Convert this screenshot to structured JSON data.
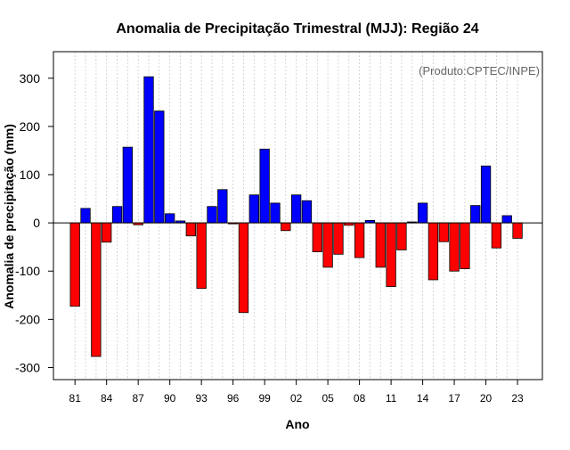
{
  "chart_data": {
    "type": "bar",
    "title": "Anomalia de Precipitação Trimestral (MJJ): Região 24",
    "xlabel": "Ano",
    "ylabel": "Anomalia de precipitação (mm)",
    "annotation": "(Produto:CPTEC/INPE)",
    "ylim": [
      -325,
      355
    ],
    "yticks": [
      -300,
      -200,
      -100,
      0,
      100,
      200,
      300
    ],
    "xtick_labels": [
      "81",
      "84",
      "87",
      "90",
      "93",
      "96",
      "99",
      "02",
      "05",
      "08",
      "11",
      "14",
      "17",
      "20",
      "23"
    ],
    "xtick_years": [
      1981,
      1984,
      1987,
      1990,
      1993,
      1996,
      1999,
      2002,
      2005,
      2008,
      2011,
      2014,
      2017,
      2020,
      2023
    ],
    "years": [
      1981,
      1982,
      1983,
      1984,
      1985,
      1986,
      1987,
      1988,
      1989,
      1990,
      1991,
      1992,
      1993,
      1994,
      1995,
      1996,
      1997,
      1998,
      1999,
      2000,
      2001,
      2002,
      2003,
      2004,
      2005,
      2006,
      2007,
      2008,
      2009,
      2010,
      2011,
      2012,
      2013,
      2014,
      2015,
      2016,
      2017,
      2018,
      2019,
      2020,
      2021,
      2022,
      2023
    ],
    "values": [
      -173,
      30,
      -277,
      -40,
      34,
      157,
      -4,
      303,
      232,
      19,
      4,
      -27,
      -136,
      34,
      69,
      -2,
      -186,
      58,
      153,
      41,
      -16,
      58,
      46,
      -60,
      -92,
      -65,
      -5,
      -72,
      5,
      -92,
      -132,
      -56,
      2,
      41,
      -118,
      -39,
      -100,
      -95,
      36,
      118,
      -52,
      15,
      -32
    ],
    "colors": {
      "positive": "#0000ff",
      "negative": "#ff0000",
      "bar_stroke": "#000000",
      "grid": "#cccccc",
      "axis": "#000000",
      "annotation": "#666666"
    }
  }
}
